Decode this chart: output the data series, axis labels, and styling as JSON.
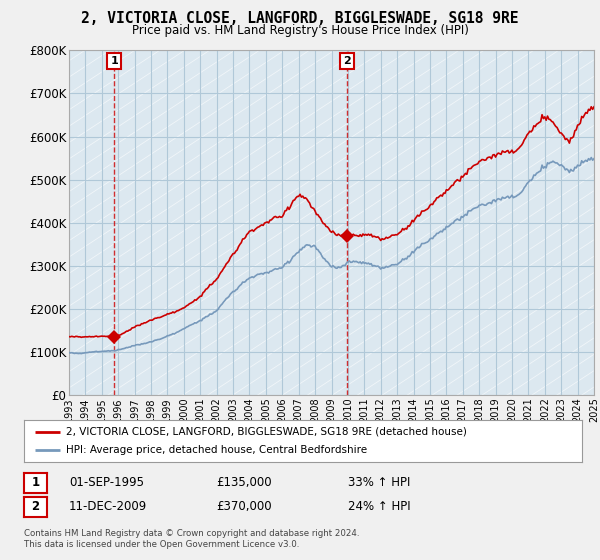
{
  "title": "2, VICTORIA CLOSE, LANGFORD, BIGGLESWADE, SG18 9RE",
  "subtitle": "Price paid vs. HM Land Registry's House Price Index (HPI)",
  "property_label": "2, VICTORIA CLOSE, LANGFORD, BIGGLESWADE, SG18 9RE (detached house)",
  "hpi_label": "HPI: Average price, detached house, Central Bedfordshire",
  "sale1_date": "01-SEP-1995",
  "sale1_price": 135000,
  "sale1_hpi": "33% ↑ HPI",
  "sale2_date": "11-DEC-2009",
  "sale2_price": 370000,
  "sale2_hpi": "24% ↑ HPI",
  "footnote": "Contains HM Land Registry data © Crown copyright and database right 2024.\nThis data is licensed under the Open Government Licence v3.0.",
  "property_color": "#cc0000",
  "hpi_color": "#7799bb",
  "ylim": [
    0,
    800000
  ],
  "yticks": [
    0,
    100000,
    200000,
    300000,
    400000,
    500000,
    600000,
    700000,
    800000
  ],
  "ytick_labels": [
    "£0",
    "£100K",
    "£200K",
    "£300K",
    "£400K",
    "£500K",
    "£600K",
    "£700K",
    "£800K"
  ],
  "background_color": "#f0f0f0",
  "plot_bg_color": "#dce8f0",
  "grid_color": "#b0c8d8",
  "marker1_x": 1995.75,
  "marker1_y": 135000,
  "marker2_x": 2009.95,
  "marker2_y": 370000,
  "xmin": 1993,
  "xmax": 2025
}
